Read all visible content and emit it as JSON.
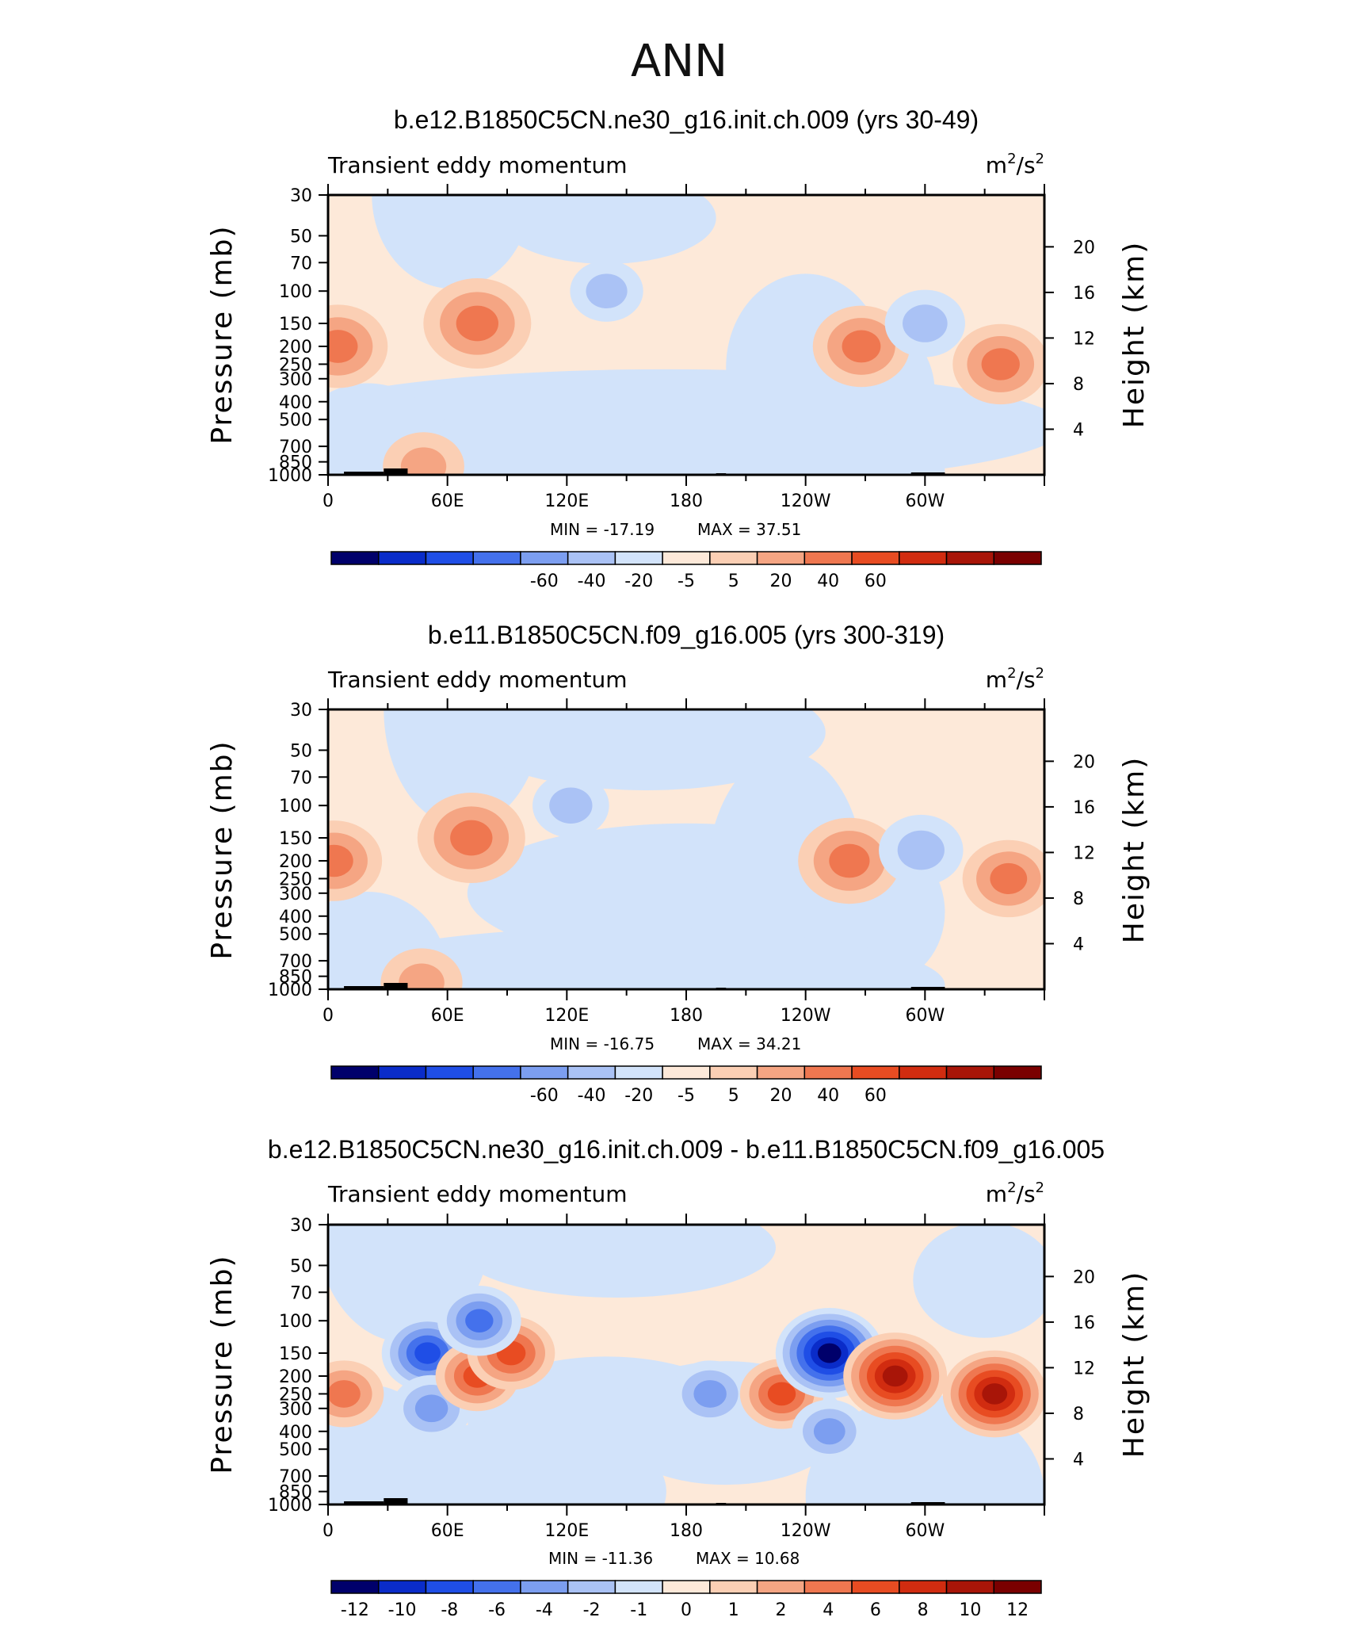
{
  "figure_title": "ANN",
  "chart_data": [
    {
      "type": "contour",
      "title": "b.e12.B1850C5CN.ne30_g16.init.ch.009 (yrs 30-49)",
      "left_label": "Transient eddy momentum",
      "units": {
        "base": "m",
        "exp1": "2",
        "sep": "/s",
        "exp2": "2"
      },
      "ylabel_left": "Pressure (mb)",
      "ylabel_right": "Height (km)",
      "x_ticks": [
        "0",
        "60E",
        "120E",
        "180",
        "120W",
        "60W"
      ],
      "y_ticks_pressure": [
        "30",
        "50",
        "70",
        "100",
        "150",
        "200",
        "250",
        "300",
        "400",
        "500",
        "700",
        "850",
        "1000"
      ],
      "y_ticks_height": [
        "20",
        "16",
        "12",
        "8",
        "4"
      ],
      "min_label": "MIN = -17.19",
      "max_label": "MAX = 37.51",
      "colorbar_labels": [
        "-60",
        "-40",
        "-20",
        "-5",
        "5",
        "20",
        "40",
        "60"
      ],
      "colorbar_colors": [
        "#00006b",
        "#0a2cc9",
        "#1f4ee6",
        "#4471ec",
        "#7c9ef0",
        "#aac2f5",
        "#d2e3fa",
        "#fde9d9",
        "#fbcfb4",
        "#f5a583",
        "#ef7750",
        "#e84c22",
        "#d12c10",
        "#a81508",
        "#7a0000"
      ],
      "contour_levels": [
        -60,
        -40,
        -20,
        -5,
        5,
        20,
        40,
        60
      ],
      "features": [
        {
          "lon": 5,
          "p": 200,
          "value": 30
        },
        {
          "lon": 75,
          "p": 150,
          "value": 37
        },
        {
          "lon": 140,
          "p": 100,
          "value": -8
        },
        {
          "lon": 268,
          "p": 200,
          "value": 28
        },
        {
          "lon": 300,
          "p": 150,
          "value": -14
        },
        {
          "lon": 338,
          "p": 250,
          "value": 27
        },
        {
          "lon": 48,
          "p": 900,
          "value": 15
        }
      ]
    },
    {
      "type": "contour",
      "title": "b.e11.B1850C5CN.f09_g16.005 (yrs 300-319)",
      "left_label": "Transient eddy momentum",
      "units": {
        "base": "m",
        "exp1": "2",
        "sep": "/s",
        "exp2": "2"
      },
      "ylabel_left": "Pressure (mb)",
      "ylabel_right": "Height (km)",
      "x_ticks": [
        "0",
        "60E",
        "120E",
        "180",
        "120W",
        "60W"
      ],
      "y_ticks_pressure": [
        "30",
        "50",
        "70",
        "100",
        "150",
        "200",
        "250",
        "300",
        "400",
        "500",
        "700",
        "850",
        "1000"
      ],
      "y_ticks_height": [
        "20",
        "16",
        "12",
        "8",
        "4"
      ],
      "min_label": "MIN = -16.75",
      "max_label": "MAX = 34.21",
      "colorbar_labels": [
        "-60",
        "-40",
        "-20",
        "-5",
        "5",
        "20",
        "40",
        "60"
      ],
      "colorbar_colors": [
        "#00006b",
        "#0a2cc9",
        "#1f4ee6",
        "#4471ec",
        "#7c9ef0",
        "#aac2f5",
        "#d2e3fa",
        "#fde9d9",
        "#fbcfb4",
        "#f5a583",
        "#ef7750",
        "#e84c22",
        "#d12c10",
        "#a81508",
        "#7a0000"
      ],
      "contour_levels": [
        -60,
        -40,
        -20,
        -5,
        5,
        20,
        40,
        60
      ],
      "features": [
        {
          "lon": 3,
          "p": 200,
          "value": 25
        },
        {
          "lon": 72,
          "p": 150,
          "value": 34
        },
        {
          "lon": 122,
          "p": 100,
          "value": -10
        },
        {
          "lon": 262,
          "p": 200,
          "value": 30
        },
        {
          "lon": 298,
          "p": 175,
          "value": -16
        },
        {
          "lon": 342,
          "p": 250,
          "value": 22
        },
        {
          "lon": 47,
          "p": 920,
          "value": 14
        }
      ]
    },
    {
      "type": "contour",
      "title": "b.e12.B1850C5CN.ne30_g16.init.ch.009 - b.e11.B1850C5CN.f09_g16.005",
      "left_label": "Transient eddy momentum",
      "units": {
        "base": "m",
        "exp1": "2",
        "sep": "/s",
        "exp2": "2"
      },
      "ylabel_left": "Pressure (mb)",
      "ylabel_right": "Height (km)",
      "x_ticks": [
        "0",
        "60E",
        "120E",
        "180",
        "120W",
        "60W"
      ],
      "y_ticks_pressure": [
        "30",
        "50",
        "70",
        "100",
        "150",
        "200",
        "250",
        "300",
        "400",
        "500",
        "700",
        "850",
        "1000"
      ],
      "y_ticks_height": [
        "20",
        "16",
        "12",
        "8",
        "4"
      ],
      "min_label": "MIN = -11.36",
      "max_label": "MAX = 10.68",
      "colorbar_labels": [
        "-12",
        "-10",
        "-8",
        "-6",
        "-4",
        "-2",
        "-1",
        "0",
        "1",
        "2",
        "4",
        "6",
        "8",
        "10",
        "12"
      ],
      "colorbar_colors": [
        "#00006b",
        "#0a2cc9",
        "#1f4ee6",
        "#4471ec",
        "#7c9ef0",
        "#aac2f5",
        "#d2e3fa",
        "#fde9d9",
        "#fbcfb4",
        "#f5a583",
        "#ef7750",
        "#e84c22",
        "#d12c10",
        "#a81508",
        "#7a0000"
      ],
      "contour_levels": [
        -12,
        -10,
        -8,
        -6,
        -4,
        -2,
        -1,
        0,
        1,
        2,
        4,
        6,
        8,
        10,
        12
      ],
      "features": [
        {
          "lon": 8,
          "p": 250,
          "value": 4
        },
        {
          "lon": 50,
          "p": 150,
          "value": -7
        },
        {
          "lon": 52,
          "p": 300,
          "value": -4
        },
        {
          "lon": 75,
          "p": 200,
          "value": 5
        },
        {
          "lon": 92,
          "p": 150,
          "value": 6
        },
        {
          "lon": 76,
          "p": 100,
          "value": -5
        },
        {
          "lon": 192,
          "p": 250,
          "value": -4
        },
        {
          "lon": 228,
          "p": 250,
          "value": 5
        },
        {
          "lon": 252,
          "p": 150,
          "value": -11
        },
        {
          "lon": 285,
          "p": 200,
          "value": 10
        },
        {
          "lon": 335,
          "p": 250,
          "value": 10
        },
        {
          "lon": 252,
          "p": 400,
          "value": -3
        }
      ]
    }
  ]
}
